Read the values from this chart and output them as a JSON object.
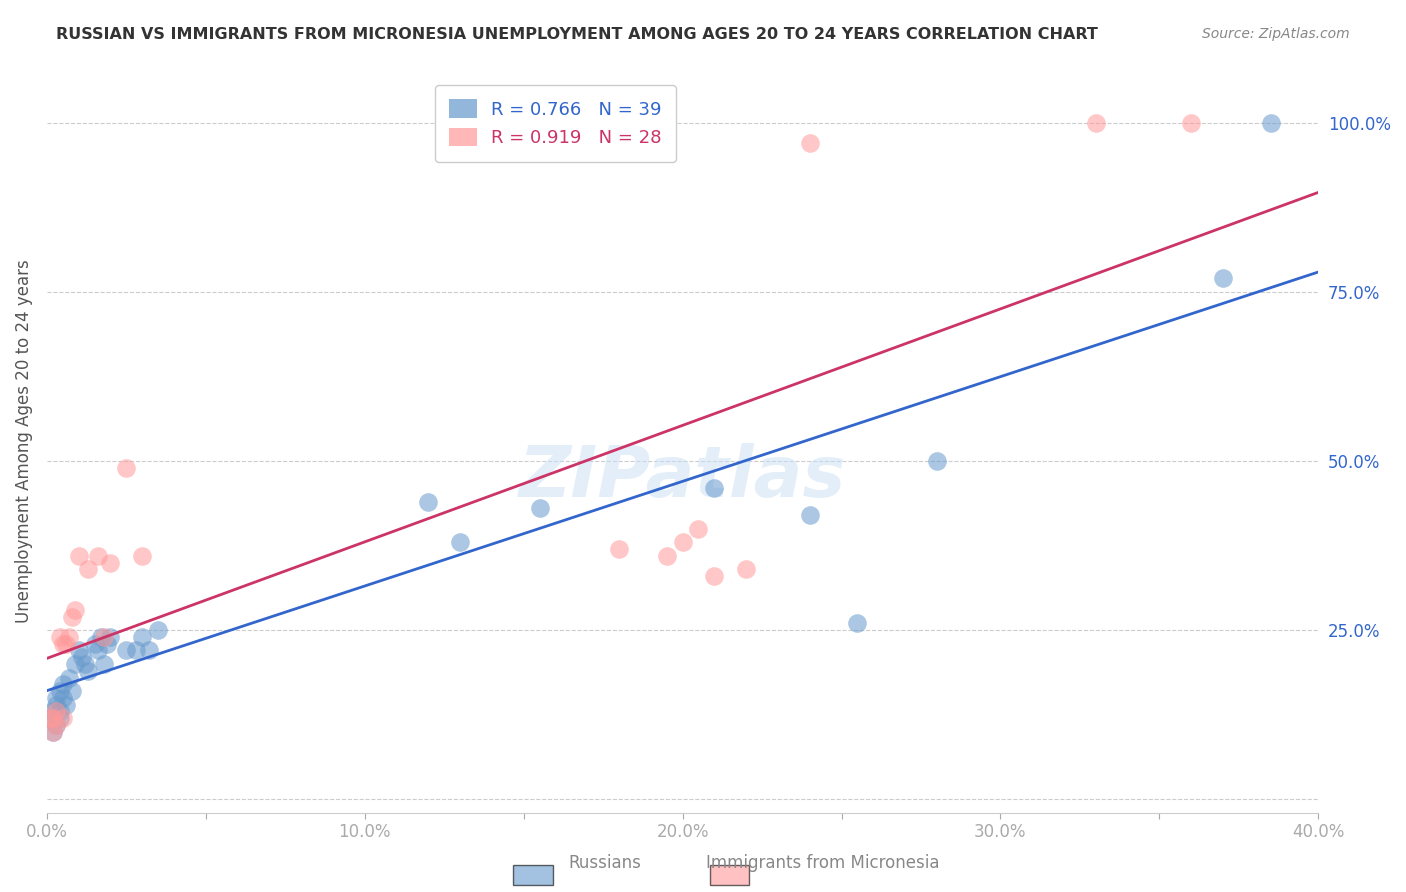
{
  "title": "RUSSIAN VS IMMIGRANTS FROM MICRONESIA UNEMPLOYMENT AMONG AGES 20 TO 24 YEARS CORRELATION CHART",
  "source": "Source: ZipAtlas.com",
  "ylabel": "Unemployment Among Ages 20 to 24 years",
  "xlim": [
    0,
    0.4
  ],
  "ylim": [
    -0.02,
    1.08
  ],
  "xticks": [
    0.0,
    0.05,
    0.1,
    0.15,
    0.2,
    0.25,
    0.3,
    0.35,
    0.4
  ],
  "xticklabels": [
    "0.0%",
    "",
    "10.0%",
    "",
    "20.0%",
    "",
    "30.0%",
    "",
    "40.0%"
  ],
  "yticks": [
    0.0,
    0.25,
    0.5,
    0.75,
    1.0
  ],
  "yticklabels": [
    "",
    "25.0%",
    "50.0%",
    "75.0%",
    "100.0%"
  ],
  "legend1_label": "Russians",
  "legend2_label": "Immigrants from Micronesia",
  "r1": 0.766,
  "n1": 39,
  "r2": 0.919,
  "n2": 28,
  "color1": "#6699cc",
  "color2": "#ff9999",
  "line_color1": "#3366cc",
  "line_color2": "#cc3366",
  "watermark": "ZIPatlas",
  "blue_x": [
    0.001,
    0.002,
    0.002,
    0.003,
    0.003,
    0.003,
    0.004,
    0.004,
    0.004,
    0.005,
    0.005,
    0.006,
    0.007,
    0.008,
    0.009,
    0.01,
    0.011,
    0.012,
    0.013,
    0.015,
    0.016,
    0.017,
    0.018,
    0.019,
    0.02,
    0.025,
    0.028,
    0.03,
    0.032,
    0.035,
    0.12,
    0.13,
    0.155,
    0.21,
    0.24,
    0.255,
    0.28,
    0.37,
    0.385
  ],
  "blue_y": [
    0.12,
    0.1,
    0.13,
    0.11,
    0.14,
    0.15,
    0.12,
    0.16,
    0.13,
    0.15,
    0.17,
    0.14,
    0.18,
    0.16,
    0.2,
    0.22,
    0.21,
    0.2,
    0.19,
    0.23,
    0.22,
    0.24,
    0.2,
    0.23,
    0.24,
    0.22,
    0.22,
    0.24,
    0.22,
    0.25,
    0.44,
    0.38,
    0.43,
    0.46,
    0.42,
    0.26,
    0.5,
    0.77,
    1.0
  ],
  "pink_x": [
    0.001,
    0.002,
    0.002,
    0.003,
    0.003,
    0.004,
    0.005,
    0.005,
    0.006,
    0.007,
    0.008,
    0.009,
    0.01,
    0.013,
    0.016,
    0.018,
    0.02,
    0.025,
    0.03,
    0.18,
    0.195,
    0.2,
    0.205,
    0.21,
    0.22,
    0.24,
    0.33,
    0.36
  ],
  "pink_y": [
    0.12,
    0.1,
    0.12,
    0.11,
    0.13,
    0.24,
    0.12,
    0.23,
    0.23,
    0.24,
    0.27,
    0.28,
    0.36,
    0.34,
    0.36,
    0.24,
    0.35,
    0.49,
    0.36,
    0.37,
    0.36,
    0.38,
    0.4,
    0.33,
    0.34,
    0.97,
    1.0,
    1.0
  ]
}
